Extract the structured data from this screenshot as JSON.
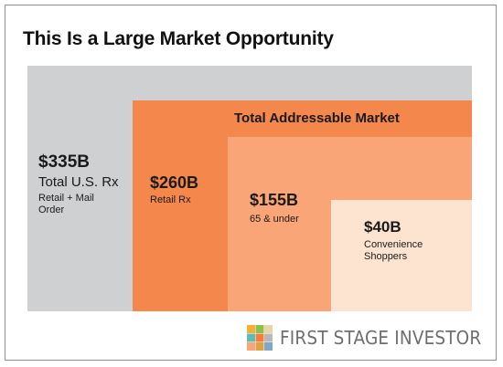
{
  "title": "This Is a Large Market Opportunity",
  "tam_label": "Total Addressable Market",
  "segments": [
    {
      "amount": "$335B",
      "label": "Total U.S. Rx",
      "sublabel": "Retail + Mail Order",
      "color": "#cfd0d2"
    },
    {
      "amount": "$260B",
      "label": "Retail Rx",
      "color": "#f4874b"
    },
    {
      "amount": "$155B",
      "label": "65 & under",
      "color": "#f9a578"
    },
    {
      "amount": "$40B",
      "label": "Convenience Shoppers",
      "color": "#fde4d0"
    }
  ],
  "brand": {
    "name": "FIRST STAGE INVESTOR",
    "icon": "mosaic-logo-icon"
  }
}
